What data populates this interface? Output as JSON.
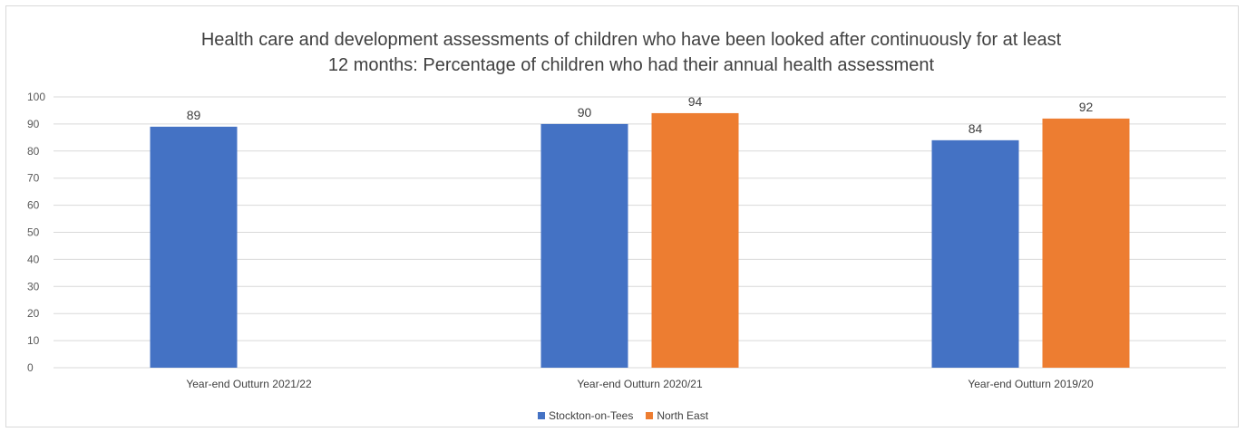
{
  "chart_data": {
    "type": "bar",
    "title_lines": [
      "Health care and development assessments of children who have been looked after continuously for at least",
      "12 months: Percentage of children who had their annual health assessment"
    ],
    "categories": [
      "Year-end Outturn 2021/22",
      "Year-end Outturn 2020/21",
      "Year-end Outturn 2019/20"
    ],
    "series": [
      {
        "name": "Stockton-on-Tees",
        "color": "#4472c4",
        "values": [
          89,
          90,
          84
        ]
      },
      {
        "name": "North East",
        "color": "#ed7d31",
        "values": [
          null,
          94,
          92
        ]
      }
    ],
    "ylim": [
      0,
      100
    ],
    "yticks": [
      0,
      10,
      20,
      30,
      40,
      50,
      60,
      70,
      80,
      90,
      100
    ],
    "grid": true,
    "legend_position": "bottom"
  }
}
